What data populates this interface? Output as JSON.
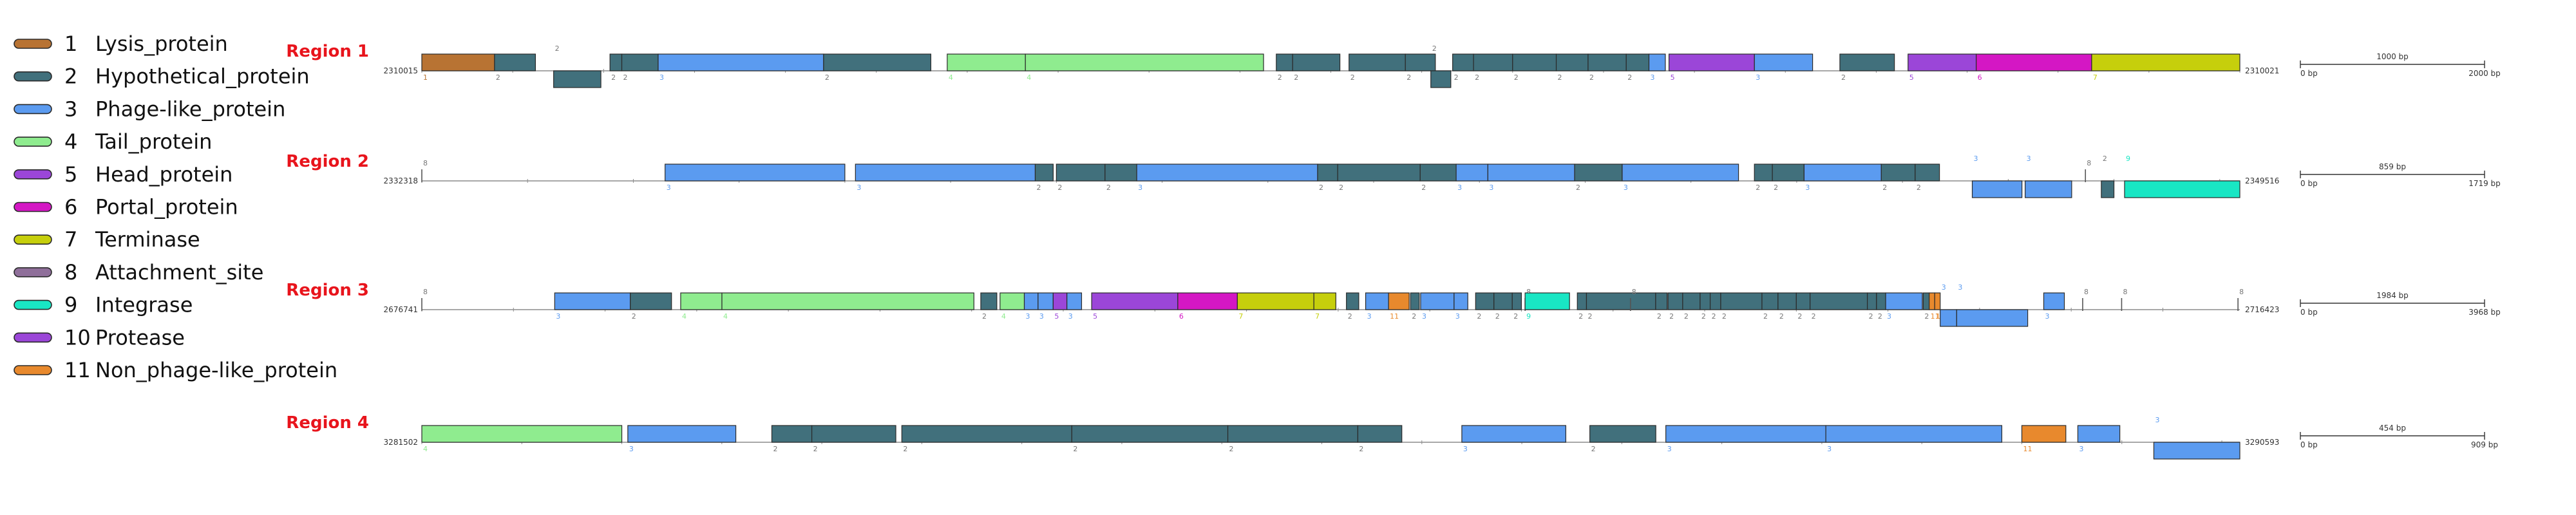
{
  "colors": {
    "1": "#b87333",
    "2": "#41707c",
    "3": "#5b9bf0",
    "4": "#8fec8f",
    "5": "#9b46d8",
    "6": "#d417c4",
    "7": "#c6cf0c",
    "8": "#8f6f9a",
    "9": "#19e6c4",
    "10": "#9b46d8",
    "11": "#e8892d",
    "region_label": "#e8141c",
    "line": "#8c8c8c",
    "num": "#777777",
    "outline": "#2a2a2a"
  },
  "legend": [
    {
      "num": "1",
      "label": "Lysis_protein"
    },
    {
      "num": "2",
      "label": "Hypothetical_protein"
    },
    {
      "num": "3",
      "label": "Phage-like_protein"
    },
    {
      "num": "4",
      "label": "Tail_protein"
    },
    {
      "num": "5",
      "label": "Head_protein"
    },
    {
      "num": "6",
      "label": "Portal_protein"
    },
    {
      "num": "7",
      "label": "Terminase"
    },
    {
      "num": "8",
      "label": "Attachment_site"
    },
    {
      "num": "9",
      "label": "Integrase"
    },
    {
      "num": "10",
      "label": "Protease"
    },
    {
      "num": "11",
      "label": "Non_phage-like_protein"
    }
  ],
  "regions": [
    {
      "label": "Region 1",
      "start_label": "2310015",
      "end_label": "2310021",
      "length_bp": 2000,
      "scale": {
        "mid": "1000 bp",
        "left": "0 bp",
        "right": "2000 bp"
      },
      "genes": [
        {
          "start": 0,
          "end": 80,
          "type": 1,
          "strand": "+"
        },
        {
          "start": 80,
          "end": 125,
          "type": 2,
          "strand": "+"
        },
        {
          "start": 145,
          "end": 197,
          "type": 2,
          "strand": "-"
        },
        {
          "start": 207,
          "end": 220,
          "type": 2,
          "strand": "+"
        },
        {
          "start": 220,
          "end": 260,
          "type": 2,
          "strand": "+"
        },
        {
          "start": 260,
          "end": 442,
          "type": 3,
          "strand": "+"
        },
        {
          "start": 442,
          "end": 560,
          "type": 2,
          "strand": "+"
        },
        {
          "start": 578,
          "end": 664,
          "type": 4,
          "strand": "+"
        },
        {
          "start": 664,
          "end": 926,
          "type": 4,
          "strand": "+"
        },
        {
          "start": 940,
          "end": 958,
          "type": 2,
          "strand": "+"
        },
        {
          "start": 958,
          "end": 1010,
          "type": 2,
          "strand": "+"
        },
        {
          "start": 1020,
          "end": 1082,
          "type": 2,
          "strand": "+"
        },
        {
          "start": 1082,
          "end": 1115,
          "type": 2,
          "strand": "+"
        },
        {
          "start": 1110,
          "end": 1132,
          "type": 2,
          "strand": "-"
        },
        {
          "start": 1134,
          "end": 1157,
          "type": 2,
          "strand": "+"
        },
        {
          "start": 1157,
          "end": 1200,
          "type": 2,
          "strand": "+"
        },
        {
          "start": 1200,
          "end": 1248,
          "type": 2,
          "strand": "+"
        },
        {
          "start": 1248,
          "end": 1283,
          "type": 2,
          "strand": "+"
        },
        {
          "start": 1283,
          "end": 1325,
          "type": 2,
          "strand": "+"
        },
        {
          "start": 1325,
          "end": 1350,
          "type": 2,
          "strand": "+"
        },
        {
          "start": 1350,
          "end": 1368,
          "type": 3,
          "strand": "+"
        },
        {
          "start": 1372,
          "end": 1466,
          "type": 5,
          "strand": "+"
        },
        {
          "start": 1466,
          "end": 1530,
          "type": 3,
          "strand": "+"
        },
        {
          "start": 1560,
          "end": 1620,
          "type": 2,
          "strand": "+"
        },
        {
          "start": 1635,
          "end": 1710,
          "type": 5,
          "strand": "+"
        },
        {
          "start": 1710,
          "end": 1837,
          "type": 6,
          "strand": "+"
        },
        {
          "start": 1837,
          "end": 2000,
          "type": 7,
          "strand": "+"
        }
      ],
      "ticks": [
        0,
        100,
        200,
        300,
        400,
        500,
        600,
        700,
        800,
        900,
        1000,
        1100,
        1200,
        1300,
        1400,
        1500,
        1600,
        1700,
        1800,
        1900,
        2000
      ]
    },
    {
      "label": "Region 2",
      "start_label": "2332318",
      "end_label": "2349516",
      "length_bp": 1719,
      "scale": {
        "mid": "859 bp",
        "left": "0 bp",
        "right": "1719 bp"
      },
      "genes": [
        {
          "start": 0,
          "end": 2,
          "type": 8,
          "strand": "+",
          "site": true,
          "num_label": "8"
        },
        {
          "start": 230,
          "end": 400,
          "type": 3,
          "strand": "+"
        },
        {
          "start": 410,
          "end": 580,
          "type": 3,
          "strand": "+"
        },
        {
          "start": 580,
          "end": 597,
          "type": 2,
          "strand": "+"
        },
        {
          "start": 600,
          "end": 646,
          "type": 2,
          "strand": "+"
        },
        {
          "start": 646,
          "end": 676,
          "type": 2,
          "strand": "+"
        },
        {
          "start": 676,
          "end": 847,
          "type": 3,
          "strand": "+"
        },
        {
          "start": 847,
          "end": 866,
          "type": 2,
          "strand": "+"
        },
        {
          "start": 866,
          "end": 944,
          "type": 2,
          "strand": "+"
        },
        {
          "start": 944,
          "end": 978,
          "type": 2,
          "strand": "+"
        },
        {
          "start": 978,
          "end": 1008,
          "type": 3,
          "strand": "+"
        },
        {
          "start": 1008,
          "end": 1090,
          "type": 3,
          "strand": "+"
        },
        {
          "start": 1090,
          "end": 1135,
          "type": 2,
          "strand": "+"
        },
        {
          "start": 1135,
          "end": 1245,
          "type": 3,
          "strand": "+"
        },
        {
          "start": 1260,
          "end": 1277,
          "type": 2,
          "strand": "+"
        },
        {
          "start": 1277,
          "end": 1307,
          "type": 2,
          "strand": "+"
        },
        {
          "start": 1307,
          "end": 1380,
          "type": 3,
          "strand": "+"
        },
        {
          "start": 1380,
          "end": 1412,
          "type": 2,
          "strand": "+"
        },
        {
          "start": 1412,
          "end": 1435,
          "type": 2,
          "strand": "+"
        },
        {
          "start": 1466,
          "end": 1513,
          "type": 3,
          "strand": "-"
        },
        {
          "start": 1516,
          "end": 1560,
          "type": 3,
          "strand": "-"
        },
        {
          "start": 1573,
          "end": 1575,
          "type": 8,
          "strand": "-",
          "site": true,
          "num_label": "8"
        },
        {
          "start": 1588,
          "end": 1600,
          "type": 2,
          "strand": "-"
        },
        {
          "start": 1610,
          "end": 1719,
          "type": 9,
          "strand": "-"
        }
      ],
      "ticks": [
        0,
        100,
        200,
        300,
        400,
        500,
        600,
        700,
        800,
        900,
        1000,
        1100,
        1200,
        1300,
        1400,
        1500,
        1600,
        1700
      ]
    },
    {
      "label": "Region 3",
      "start_label": "2676741",
      "end_label": "2716423",
      "length_bp": 3968,
      "scale": {
        "mid": "1984 bp",
        "left": "0 bp",
        "right": "3968 bp"
      },
      "genes": [
        {
          "start": 0,
          "end": 3,
          "type": 8,
          "strand": "+",
          "site": true,
          "num_label": "8"
        },
        {
          "start": 290,
          "end": 455,
          "type": 3,
          "strand": "+"
        },
        {
          "start": 455,
          "end": 545,
          "type": 2,
          "strand": "+"
        },
        {
          "start": 565,
          "end": 655,
          "type": 4,
          "strand": "+"
        },
        {
          "start": 655,
          "end": 1205,
          "type": 4,
          "strand": "+"
        },
        {
          "start": 1220,
          "end": 1255,
          "type": 2,
          "strand": "+"
        },
        {
          "start": 1262,
          "end": 1315,
          "type": 4,
          "strand": "+"
        },
        {
          "start": 1315,
          "end": 1345,
          "type": 3,
          "strand": "+"
        },
        {
          "start": 1345,
          "end": 1378,
          "type": 3,
          "strand": "+"
        },
        {
          "start": 1378,
          "end": 1408,
          "type": 5,
          "strand": "+"
        },
        {
          "start": 1408,
          "end": 1440,
          "type": 3,
          "strand": "+"
        },
        {
          "start": 1462,
          "end": 1650,
          "type": 5,
          "strand": "+"
        },
        {
          "start": 1650,
          "end": 1780,
          "type": 6,
          "strand": "+"
        },
        {
          "start": 1780,
          "end": 1947,
          "type": 7,
          "strand": "+"
        },
        {
          "start": 1947,
          "end": 1995,
          "type": 7,
          "strand": "+"
        },
        {
          "start": 2018,
          "end": 2045,
          "type": 2,
          "strand": "+"
        },
        {
          "start": 2060,
          "end": 2110,
          "type": 3,
          "strand": "+"
        },
        {
          "start": 2110,
          "end": 2155,
          "type": 11,
          "strand": "+"
        },
        {
          "start": 2158,
          "end": 2177,
          "type": 2,
          "strand": "+"
        },
        {
          "start": 2180,
          "end": 2253,
          "type": 3,
          "strand": "+"
        },
        {
          "start": 2253,
          "end": 2283,
          "type": 3,
          "strand": "+"
        },
        {
          "start": 2300,
          "end": 2340,
          "type": 2,
          "strand": "+"
        },
        {
          "start": 2340,
          "end": 2380,
          "type": 2,
          "strand": "+"
        },
        {
          "start": 2380,
          "end": 2400,
          "type": 2,
          "strand": "+"
        },
        {
          "start": 2408,
          "end": 2412,
          "type": 8,
          "strand": "-",
          "site": true,
          "num_label": "8"
        },
        {
          "start": 2408,
          "end": 2505,
          "type": 9,
          "strand": "+"
        },
        {
          "start": 2522,
          "end": 2542,
          "type": 2,
          "strand": "+"
        },
        {
          "start": 2542,
          "end": 2693,
          "type": 2,
          "strand": "+"
        },
        {
          "start": 2638,
          "end": 2642,
          "type": 8,
          "strand": "-",
          "site": true,
          "num_label": "8"
        },
        {
          "start": 2693,
          "end": 2718,
          "type": 2,
          "strand": "+"
        },
        {
          "start": 2720,
          "end": 2752,
          "type": 2,
          "strand": "+"
        },
        {
          "start": 2752,
          "end": 2790,
          "type": 2,
          "strand": "+"
        },
        {
          "start": 2790,
          "end": 2812,
          "type": 2,
          "strand": "+"
        },
        {
          "start": 2812,
          "end": 2835,
          "type": 2,
          "strand": "+"
        },
        {
          "start": 2835,
          "end": 2925,
          "type": 2,
          "strand": "+"
        },
        {
          "start": 2925,
          "end": 2960,
          "type": 2,
          "strand": "+"
        },
        {
          "start": 2960,
          "end": 3000,
          "type": 2,
          "strand": "+"
        },
        {
          "start": 3000,
          "end": 3030,
          "type": 2,
          "strand": "+"
        },
        {
          "start": 3030,
          "end": 3155,
          "type": 2,
          "strand": "+"
        },
        {
          "start": 3155,
          "end": 3175,
          "type": 2,
          "strand": "+"
        },
        {
          "start": 3175,
          "end": 3195,
          "type": 2,
          "strand": "+"
        },
        {
          "start": 3195,
          "end": 3275,
          "type": 3,
          "strand": "+"
        },
        {
          "start": 3277,
          "end": 3290,
          "type": 2,
          "strand": "+"
        },
        {
          "start": 3290,
          "end": 3302,
          "type": 11,
          "strand": "+"
        },
        {
          "start": 3302,
          "end": 3314,
          "type": 11,
          "strand": "+"
        },
        {
          "start": 3314,
          "end": 3350,
          "type": 3,
          "strand": "-"
        },
        {
          "start": 3350,
          "end": 3505,
          "type": 3,
          "strand": "-"
        },
        {
          "start": 3540,
          "end": 3585,
          "type": 3,
          "strand": "+"
        },
        {
          "start": 3625,
          "end": 3629,
          "type": 8,
          "strand": "-",
          "site": true,
          "num_label": "8"
        },
        {
          "start": 3710,
          "end": 3714,
          "type": 8,
          "strand": "-",
          "site": true,
          "num_label": "8"
        },
        {
          "start": 3964,
          "end": 3968,
          "type": 8,
          "strand": "-",
          "site": true,
          "num_label": "8"
        }
      ],
      "ticks": [
        0,
        200,
        400,
        600,
        800,
        1000,
        1200,
        1400,
        1600,
        1800,
        2000,
        2200,
        2400,
        2600,
        2800,
        3000,
        3200,
        3400,
        3600,
        3800
      ]
    },
    {
      "label": "Region 4",
      "start_label": "3281502",
      "end_label": "3290593",
      "length_bp": 909,
      "scale": {
        "mid": "454 bp",
        "left": "0 bp",
        "right": "909 bp"
      },
      "genes": [
        {
          "start": 0,
          "end": 100,
          "type": 4,
          "strand": "+"
        },
        {
          "start": 103,
          "end": 157,
          "type": 3,
          "strand": "+"
        },
        {
          "start": 175,
          "end": 195,
          "type": 2,
          "strand": "+"
        },
        {
          "start": 195,
          "end": 237,
          "type": 2,
          "strand": "+"
        },
        {
          "start": 240,
          "end": 325,
          "type": 2,
          "strand": "+"
        },
        {
          "start": 325,
          "end": 403,
          "type": 2,
          "strand": "+"
        },
        {
          "start": 403,
          "end": 468,
          "type": 2,
          "strand": "+"
        },
        {
          "start": 468,
          "end": 490,
          "type": 2,
          "strand": "+"
        },
        {
          "start": 520,
          "end": 572,
          "type": 3,
          "strand": "+"
        },
        {
          "start": 584,
          "end": 617,
          "type": 2,
          "strand": "+"
        },
        {
          "start": 622,
          "end": 702,
          "type": 3,
          "strand": "+"
        },
        {
          "start": 702,
          "end": 790,
          "type": 3,
          "strand": "+"
        },
        {
          "start": 800,
          "end": 822,
          "type": 11,
          "strand": "+"
        },
        {
          "start": 828,
          "end": 849,
          "type": 3,
          "strand": "+"
        },
        {
          "start": 866,
          "end": 909,
          "type": 3,
          "strand": "-"
        }
      ],
      "ticks": [
        0,
        50,
        100,
        150,
        200,
        250,
        300,
        350,
        400,
        450,
        500,
        550,
        600,
        650,
        700,
        750,
        800,
        850,
        900
      ]
    }
  ]
}
